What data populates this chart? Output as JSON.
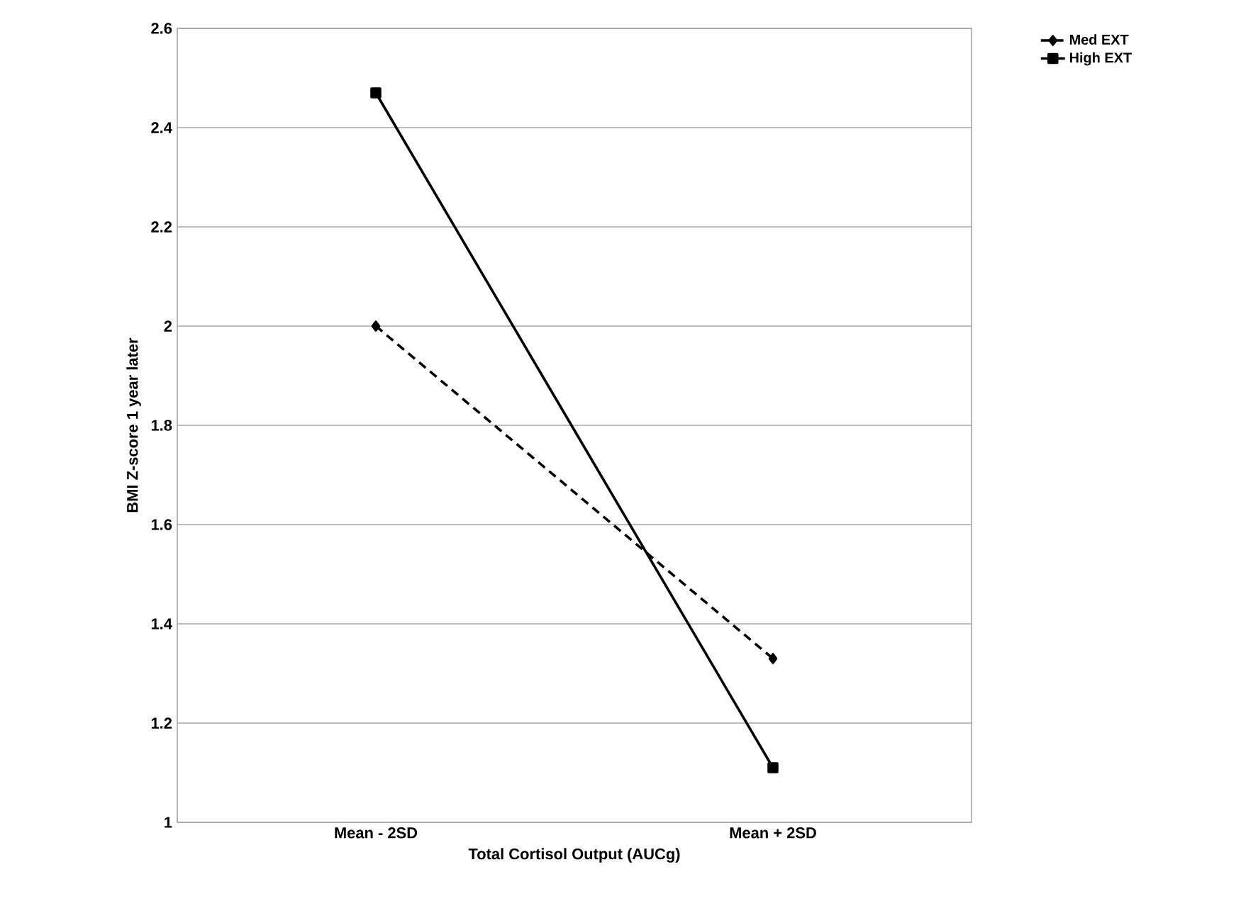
{
  "chart_data": {
    "type": "line",
    "xlabel": "Total Cortisol Output (AUCg)",
    "ylabel": "BMI Z-score 1 year later",
    "categories": [
      "Mean - 2SD",
      "Mean + 2SD"
    ],
    "series": [
      {
        "name": "Med EXT",
        "color": "#000000",
        "values": [
          2.0,
          1.33
        ],
        "line_style": "dashed",
        "marker": "diamond"
      },
      {
        "name": "High EXT",
        "color": "#000000",
        "values": [
          2.47,
          1.11
        ],
        "line_style": "solid",
        "marker": "square"
      }
    ],
    "ylim": [
      1,
      2.6
    ],
    "yticks": [
      1,
      1.2,
      1.4,
      1.6,
      1.8,
      2,
      2.2,
      2.4,
      2.6
    ],
    "grid": "y",
    "legend": "top right"
  }
}
